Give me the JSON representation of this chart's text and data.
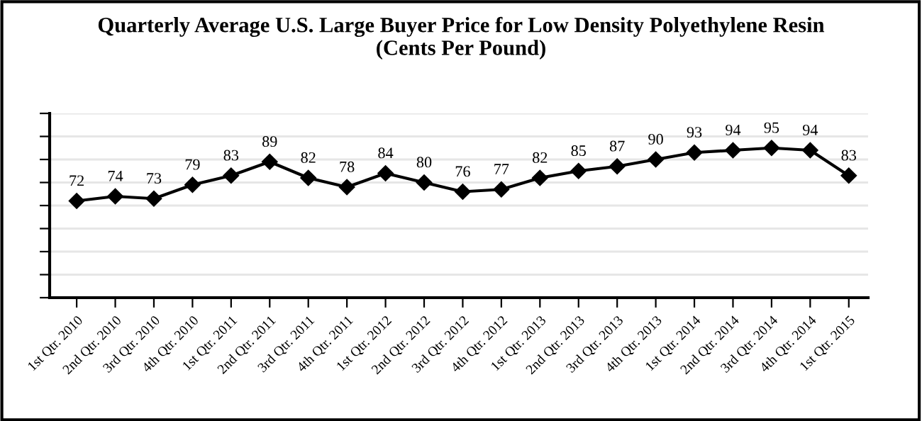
{
  "chart_data": {
    "type": "line",
    "title": "Quarterly Average U.S. Large Buyer Price for Low Density Polyethylene Resin\n(Cents Per Pound)",
    "categories": [
      "1st Qtr. 2010",
      "2nd Qtr. 2010",
      "3rd Qtr. 2010",
      "4th Qtr. 2010",
      "1st Qtr. 2011",
      "2nd Qtr. 2011",
      "3rd Qtr. 2011",
      "4th Qtr. 2011",
      "1st Qtr. 2012",
      "2nd Qtr. 2012",
      "3rd Qtr. 2012",
      "4th Qtr. 2012",
      "1st Qtr. 2013",
      "2nd Qtr. 2013",
      "3rd Qtr. 2013",
      "4th Qtr. 2013",
      "1st Qtr. 2014",
      "2nd Qtr. 2014",
      "3rd Qtr. 2014",
      "4th Qtr. 2014",
      "1st Qtr. 2015"
    ],
    "values": [
      72,
      74,
      73,
      79,
      83,
      89,
      82,
      78,
      84,
      80,
      76,
      77,
      82,
      85,
      87,
      90,
      93,
      94,
      95,
      94,
      83
    ],
    "color": "#000000",
    "marker": "diamond",
    "line_style": "solid",
    "data_labels": true,
    "grid": "y",
    "tick_labels": "x",
    "ylim": [
      30,
      110
    ],
    "yticks": [
      {
        "value": 30,
        "label": null
      },
      {
        "value": 40,
        "label": null
      },
      {
        "value": 50,
        "label": null
      },
      {
        "value": 60,
        "label": null
      },
      {
        "value": 70,
        "label": null
      },
      {
        "value": 80,
        "label": null
      },
      {
        "value": 90,
        "label": null
      },
      {
        "value": 100,
        "label": null
      },
      {
        "value": 110,
        "label": null
      }
    ]
  }
}
